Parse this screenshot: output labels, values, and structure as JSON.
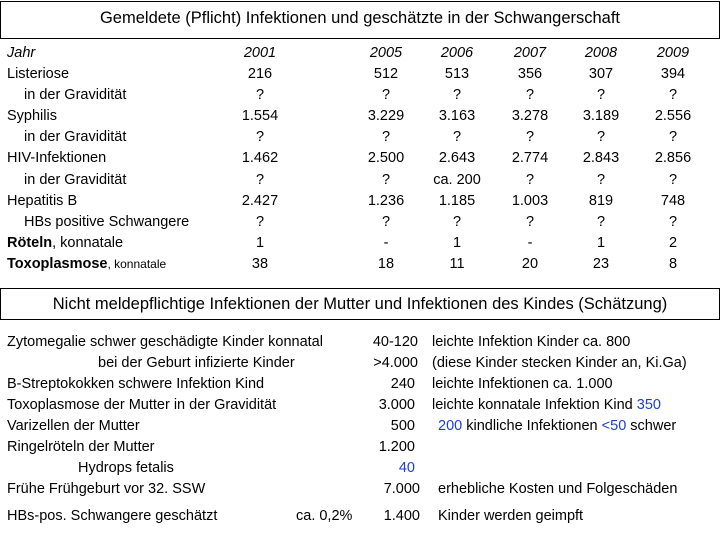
{
  "title": "Gemeldete (Pflicht) Infektionen und geschätzte in der Schwangerschaft",
  "table": {
    "label_header": "Jahr",
    "years": [
      "2001",
      "2005",
      "2006",
      "2007",
      "2008",
      "2009"
    ],
    "rows": [
      {
        "label": "Listeriose",
        "values": [
          "216",
          "512",
          "513",
          "356",
          "307",
          "394"
        ]
      },
      {
        "label": "in der Gravidität",
        "values": [
          "?",
          "?",
          "?",
          "?",
          "?",
          "?"
        ]
      },
      {
        "label": "Syphilis",
        "values": [
          "1.554",
          "3.229",
          "3.163",
          "3.278",
          "3.189",
          "2.556"
        ]
      },
      {
        "label": "in der Gravidität",
        "values": [
          "?",
          "?",
          "?",
          "?",
          "?",
          "?"
        ]
      },
      {
        "label": "HIV-Infektionen",
        "values": [
          "1.462",
          "2.500",
          "2.643",
          "2.774",
          "2.843",
          "2.856"
        ]
      },
      {
        "label": "in der Gravidität",
        "values": [
          "?",
          "?",
          "ca. 200",
          "?",
          "?",
          "?"
        ]
      },
      {
        "label": "Hepatitis B",
        "values": [
          "2.427",
          "1.236",
          "1.185",
          "1.003",
          "819",
          "748"
        ]
      },
      {
        "label": "HBs positive Schwangere",
        "values": [
          "?",
          "?",
          "?",
          "?",
          "?",
          "?"
        ]
      },
      {
        "label": "Röteln",
        "label_suffix": ", konnatale",
        "values": [
          "1",
          "-",
          "1",
          "-",
          "1",
          "2"
        ]
      },
      {
        "label": "Toxoplasmose",
        "label_suffix": ", konnatale",
        "values": [
          "38",
          "18",
          "11",
          "20",
          "23",
          "8"
        ]
      }
    ]
  },
  "section2": {
    "title": "Nicht meldepflichtige Infektionen der Mutter und Infektionen des Kindes (Schätzung)",
    "rows": [
      {
        "label": "Zytomegalie schwer geschädigte Kinder konnatal",
        "value": "40-120",
        "note": "leichte Infektion Kinder  ca. 800"
      },
      {
        "label": "bei der Geburt infizierte Kinder",
        "value": ">4.000",
        "note": "(diese Kinder stecken Kinder an, Ki.Ga)"
      },
      {
        "label": "B-Streptokokken schwere Infektion Kind",
        "value": "240",
        "note": "leichte Infektionen ca. 1.000"
      },
      {
        "label": "Toxoplasmose der Mutter in der Gravidität",
        "value": "3.000",
        "note": "leichte konnatale Infektion Kind",
        "note_value": "350"
      },
      {
        "label": "Varizellen  der Mutter",
        "value": "500",
        "note_value": "200",
        "note": " kindliche Infektionen ",
        "note_value2": "<50",
        "note_tail": " schwer"
      },
      {
        "label": "Ringelröteln der Mutter",
        "value": "1.200"
      },
      {
        "label": "Hydrops fetalis",
        "value": "40"
      },
      {
        "label": "Frühe Frühgeburt    vor 32. SSW",
        "value": "7.000",
        "note": "erhebliche Kosten und Folgeschäden"
      },
      {
        "label": "HBs-pos. Schwangere geschätzt",
        "label_extra": "ca. 0,2%",
        "value": "1.400",
        "note": "Kinder werden geimpft"
      }
    ]
  },
  "colors": {
    "accent": "#1f3fbf",
    "text": "#000000",
    "background": "#ffffff"
  }
}
